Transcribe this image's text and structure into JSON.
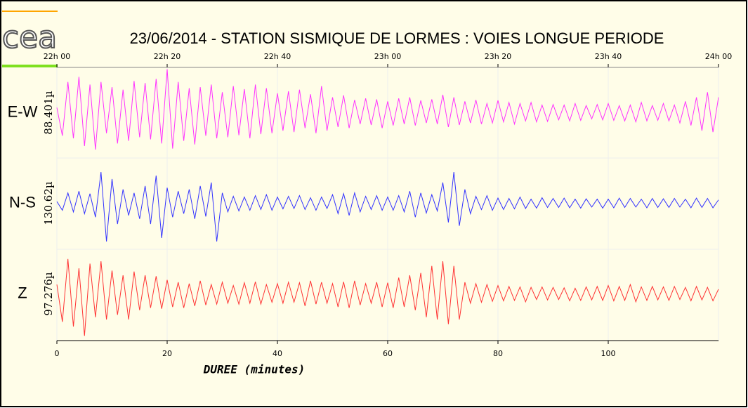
{
  "chart_data": {
    "type": "line",
    "logo": "cea",
    "title": "23/06/2014  -  STATION SISMIQUE DE LORMES : VOIES LONGUE PERIODE",
    "xlabel": "DUREE (minutes)",
    "xlim": [
      0,
      120
    ],
    "xticks": [
      0,
      20,
      40,
      60,
      80,
      100
    ],
    "top_ticks": [
      {
        "value": 0,
        "label": "22h 00"
      },
      {
        "value": 20,
        "label": "22h 20"
      },
      {
        "value": 40,
        "label": "22h 40"
      },
      {
        "value": 60,
        "label": "23h 00"
      },
      {
        "value": 80,
        "label": "23h 20"
      },
      {
        "value": 100,
        "label": "23h 40"
      },
      {
        "value": 120,
        "label": "24h 00"
      }
    ],
    "grid": true,
    "x": [
      0,
      1,
      2,
      3,
      4,
      5,
      6,
      7,
      8,
      9,
      10,
      11,
      12,
      13,
      14,
      15,
      16,
      17,
      18,
      19,
      20,
      21,
      22,
      23,
      24,
      25,
      26,
      27,
      28,
      29,
      30,
      31,
      32,
      33,
      34,
      35,
      36,
      37,
      38,
      39,
      40,
      41,
      42,
      43,
      44,
      45,
      46,
      47,
      48,
      49,
      50,
      51,
      52,
      53,
      54,
      55,
      56,
      57,
      58,
      59,
      60,
      61,
      62,
      63,
      64,
      65,
      66,
      67,
      68,
      69,
      70,
      71,
      72,
      73,
      74,
      75,
      76,
      77,
      78,
      79,
      80,
      81,
      82,
      83,
      84,
      85,
      86,
      87,
      88,
      89,
      90,
      91,
      92,
      93,
      94,
      95,
      96,
      97,
      98,
      99,
      100,
      101,
      102,
      103,
      104,
      105,
      106,
      107,
      108,
      109,
      110,
      111,
      112,
      113,
      114,
      115,
      116,
      117,
      118,
      119,
      120
    ],
    "series": [
      {
        "name": "E-W",
        "scale_label": "88.401µ",
        "color": "#ff33ff",
        "ylim": [
          -88.401,
          88.401
        ],
        "values": [
          10,
          -45,
          60,
          -50,
          70,
          -65,
          55,
          -72,
          60,
          -40,
          50,
          -60,
          45,
          -55,
          62,
          -48,
          58,
          -52,
          66,
          -60,
          85,
          -70,
          60,
          -55,
          48,
          -62,
          50,
          -45,
          55,
          -50,
          40,
          -48,
          52,
          -44,
          46,
          -50,
          55,
          -42,
          48,
          -40,
          38,
          -35,
          42,
          -38,
          45,
          -30,
          36,
          -40,
          52,
          -35,
          30,
          -28,
          34,
          -30,
          25,
          -22,
          28,
          -24,
          26,
          -30,
          22,
          -25,
          28,
          -22,
          30,
          -25,
          24,
          -20,
          26,
          -22,
          35,
          -28,
          30,
          -24,
          22,
          -20,
          25,
          -22,
          18,
          -20,
          24,
          -18,
          20,
          -22,
          18,
          -16,
          20,
          -18,
          15,
          -17,
          16,
          -14,
          15,
          -16,
          18,
          -15,
          14,
          -12,
          16,
          -14,
          18,
          -15,
          14,
          -16,
          15,
          -18,
          20,
          -16,
          14,
          -15,
          18,
          -16,
          15,
          -20,
          22,
          -25,
          30,
          -35,
          40,
          -38,
          30
        ]
      },
      {
        "name": "N-S",
        "scale_label": "130.62µ",
        "color": "#3333ff",
        "ylim": [
          -130.62,
          130.62
        ],
        "values": [
          5,
          -20,
          30,
          -25,
          35,
          -30,
          28,
          -40,
          90,
          -110,
          70,
          -60,
          40,
          -35,
          30,
          -45,
          50,
          -60,
          80,
          -100,
          45,
          -40,
          35,
          -30,
          40,
          -45,
          50,
          -38,
          60,
          -110,
          30,
          -25,
          20,
          -22,
          18,
          -20,
          22,
          -18,
          25,
          -20,
          18,
          -16,
          20,
          -15,
          22,
          -18,
          16,
          -20,
          18,
          -15,
          25,
          -30,
          28,
          -35,
          30,
          -25,
          20,
          -18,
          22,
          -20,
          18,
          -20,
          22,
          -25,
          35,
          -40,
          30,
          -28,
          25,
          -22,
          60,
          -55,
          90,
          -65,
          40,
          -30,
          20,
          -18,
          22,
          -20,
          15,
          -18,
          14,
          -16,
          18,
          -15,
          12,
          -14,
          16,
          -12,
          14,
          -12,
          15,
          -13,
          12,
          -14,
          13,
          -11,
          12,
          -14,
          12,
          -13,
          15,
          -12,
          14,
          -11,
          12,
          -13,
          14,
          -12,
          13,
          -12,
          14,
          -11,
          12,
          -13,
          15,
          -12,
          14,
          -13,
          10
        ]
      },
      {
        "name": "Z",
        "scale_label": "97.276µ",
        "color": "#ff3333",
        "ylim": [
          -97.276,
          97.276
        ],
        "values": [
          20,
          -60,
          75,
          -70,
          55,
          -90,
          65,
          -50,
          70,
          -55,
          50,
          -45,
          40,
          -55,
          48,
          -35,
          40,
          -30,
          38,
          -32,
          30,
          -28,
          25,
          -30,
          22,
          -26,
          28,
          -24,
          20,
          -22,
          25,
          -20,
          18,
          -22,
          24,
          -20,
          26,
          -22,
          20,
          -18,
          22,
          -20,
          25,
          -18,
          24,
          -26,
          28,
          -22,
          25,
          -20,
          22,
          -28,
          26,
          -30,
          28,
          -24,
          22,
          -20,
          25,
          -28,
          24,
          -30,
          35,
          -28,
          40,
          -35,
          45,
          -50,
          60,
          -55,
          70,
          -65,
          60,
          -55,
          25,
          -20,
          22,
          -18,
          20,
          -16,
          18,
          -15,
          16,
          -14,
          15,
          -17,
          14,
          -12,
          15,
          -13,
          14,
          -12,
          13,
          -15,
          12,
          -14,
          15,
          -13,
          16,
          -14,
          18,
          -15,
          16,
          -14,
          20,
          -17,
          15,
          -14,
          16,
          -13,
          15,
          -14,
          16,
          -12,
          14,
          -15,
          16,
          -13,
          14,
          -15,
          10
        ]
      }
    ]
  }
}
